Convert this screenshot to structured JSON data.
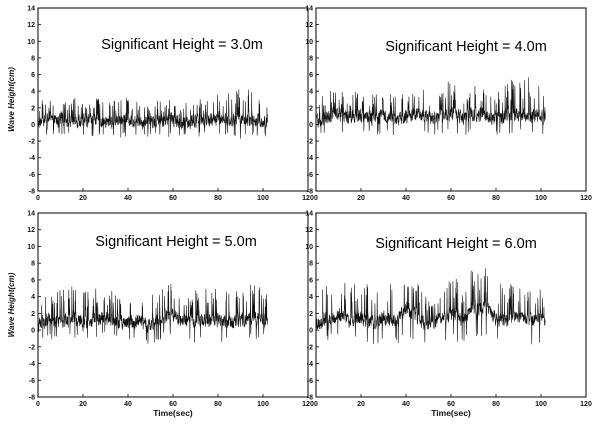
{
  "chart_data": [
    {
      "type": "line",
      "title": "Significant Height = 3.0m",
      "xlabel": "",
      "ylabel": "Wave Height(cm)",
      "xlim": [
        0,
        120
      ],
      "ylim": [
        -8,
        14
      ],
      "xticks": [
        0,
        20,
        40,
        60,
        80,
        100,
        120
      ],
      "yticks": [
        -8,
        -6,
        -4,
        -2,
        0,
        2,
        4,
        6,
        8,
        10,
        12,
        14
      ],
      "grid": false,
      "series": [
        {
          "x": [
            0,
            5,
            10,
            15,
            20,
            25,
            30,
            35,
            40,
            45,
            50,
            55,
            60,
            65,
            70,
            75,
            80,
            85,
            90,
            95,
            100,
            102
          ],
          "values": [
            0.2,
            0.6,
            0.3,
            0.5,
            0.4,
            0.7,
            0.2,
            0.5,
            0.6,
            0.3,
            0.5,
            0.4,
            0.6,
            0.2,
            0.5,
            0.3,
            0.7,
            0.4,
            0.6,
            0.5,
            0.3,
            0.2
          ],
          "max": [
            2.8,
            3.0,
            2.6,
            3.2,
            2.9,
            3.4,
            2.7,
            3.0,
            3.3,
            2.8,
            3.1,
            2.9,
            3.6,
            2.7,
            3.2,
            3.0,
            3.8,
            4.5,
            4.2,
            4.8,
            3.0,
            2.5
          ],
          "min": [
            -1.4,
            -1.5,
            -1.3,
            -1.6,
            -1.4,
            -1.5,
            -1.3,
            -1.5,
            -1.6,
            -1.4,
            -1.5,
            -1.4,
            -1.6,
            -1.3,
            -1.5,
            -1.4,
            -1.6,
            -1.5,
            -1.7,
            -1.6,
            -1.5,
            -1.3
          ]
        }
      ]
    },
    {
      "type": "line",
      "title": "Significant Height = 4.0m",
      "xlabel": "",
      "ylabel": "",
      "xlim": [
        0,
        120
      ],
      "ylim": [
        -8,
        14
      ],
      "xticks": [
        0,
        20,
        40,
        60,
        80,
        100,
        120
      ],
      "yticks": [
        -8,
        -6,
        -4,
        -2,
        0,
        2,
        4,
        6,
        8,
        10,
        12,
        14
      ],
      "grid": false,
      "series": [
        {
          "x": [
            0,
            5,
            10,
            15,
            20,
            25,
            30,
            35,
            40,
            45,
            50,
            55,
            60,
            65,
            70,
            75,
            80,
            85,
            90,
            95,
            100,
            102
          ],
          "values": [
            0.5,
            0.9,
            1.2,
            0.8,
            1.0,
            0.7,
            1.1,
            0.6,
            0.9,
            1.3,
            0.8,
            1.0,
            1.4,
            0.9,
            1.2,
            1.0,
            0.8,
            1.1,
            1.3,
            0.9,
            1.0,
            0.7
          ],
          "max": [
            3.5,
            4.0,
            4.2,
            3.8,
            4.1,
            3.6,
            4.3,
            3.5,
            4.0,
            4.5,
            3.9,
            4.2,
            5.5,
            4.1,
            4.8,
            4.3,
            3.9,
            5.5,
            5.2,
            5.8,
            4.6,
            3.6
          ],
          "min": [
            -1.0,
            -1.2,
            -0.9,
            -1.3,
            -1.1,
            -1.4,
            -1.0,
            -1.3,
            -1.2,
            -1.0,
            -1.4,
            -1.2,
            -1.1,
            -1.4,
            -1.2,
            -1.3,
            -1.5,
            -1.3,
            -1.2,
            -1.4,
            -1.3,
            -1.1
          ]
        }
      ]
    },
    {
      "type": "line",
      "title": "Significant Height = 5.0m",
      "xlabel": "Time(sec)",
      "ylabel": "Wave Height(cm)",
      "xlim": [
        0,
        120
      ],
      "ylim": [
        -8,
        14
      ],
      "xticks": [
        0,
        20,
        40,
        60,
        80,
        100,
        120
      ],
      "yticks": [
        -8,
        -6,
        -4,
        -2,
        0,
        2,
        4,
        6,
        8,
        10,
        12,
        14
      ],
      "grid": false,
      "series": [
        {
          "x": [
            0,
            5,
            10,
            15,
            20,
            25,
            30,
            35,
            40,
            45,
            50,
            55,
            60,
            65,
            70,
            75,
            80,
            85,
            90,
            95,
            100,
            102
          ],
          "values": [
            0.6,
            1.2,
            0.9,
            1.4,
            0.8,
            1.3,
            1.6,
            1.0,
            0.9,
            1.2,
            0.4,
            1.5,
            1.8,
            1.2,
            1.0,
            1.3,
            1.1,
            0.8,
            1.2,
            1.5,
            1.3,
            1.0
          ],
          "max": [
            4.5,
            5.0,
            4.8,
            5.2,
            4.6,
            5.1,
            5.3,
            4.9,
            4.7,
            5.0,
            4.5,
            5.3,
            6.3,
            5.0,
            4.8,
            5.2,
            5.0,
            4.6,
            4.9,
            5.5,
            5.4,
            4.2
          ],
          "min": [
            -1.3,
            -1.0,
            -1.4,
            -0.9,
            -1.5,
            -1.1,
            -0.8,
            -1.3,
            -1.5,
            -1.2,
            -2.2,
            -1.0,
            -0.8,
            -1.2,
            -1.5,
            -1.1,
            -1.3,
            -1.6,
            -1.4,
            -1.1,
            -1.0,
            -1.2
          ]
        }
      ]
    },
    {
      "type": "line",
      "title": "Significant Height = 6.0m",
      "xlabel": "Time(sec)",
      "ylabel": "",
      "xlim": [
        0,
        120
      ],
      "ylim": [
        -8,
        14
      ],
      "xticks": [
        0,
        20,
        40,
        60,
        80,
        100,
        120
      ],
      "yticks": [
        -8,
        -6,
        -4,
        -2,
        0,
        2,
        4,
        6,
        8,
        10,
        12,
        14
      ],
      "grid": false,
      "series": [
        {
          "x": [
            0,
            5,
            10,
            15,
            20,
            25,
            30,
            35,
            40,
            45,
            50,
            55,
            60,
            65,
            70,
            75,
            80,
            85,
            90,
            95,
            100,
            102
          ],
          "values": [
            0.7,
            1.2,
            1.8,
            1.0,
            1.4,
            0.9,
            1.5,
            1.1,
            2.6,
            1.5,
            0.6,
            1.2,
            1.8,
            1.3,
            2.4,
            2.8,
            1.4,
            1.0,
            1.6,
            1.2,
            1.4,
            0.6
          ],
          "max": [
            4.6,
            6.0,
            6.8,
            5.2,
            6.3,
            4.8,
            6.5,
            5.3,
            6.8,
            5.8,
            4.6,
            5.5,
            6.5,
            5.8,
            8.0,
            7.5,
            6.0,
            5.2,
            6.2,
            5.4,
            5.8,
            3.0
          ],
          "min": [
            -1.6,
            -1.3,
            -1.0,
            -1.7,
            -1.4,
            -2.0,
            -1.3,
            -1.8,
            -1.1,
            -1.5,
            -2.0,
            -1.6,
            -1.2,
            -1.7,
            -1.0,
            -0.8,
            -1.5,
            -2.0,
            -1.4,
            -1.7,
            -1.6,
            -1.5
          ]
        }
      ]
    }
  ]
}
